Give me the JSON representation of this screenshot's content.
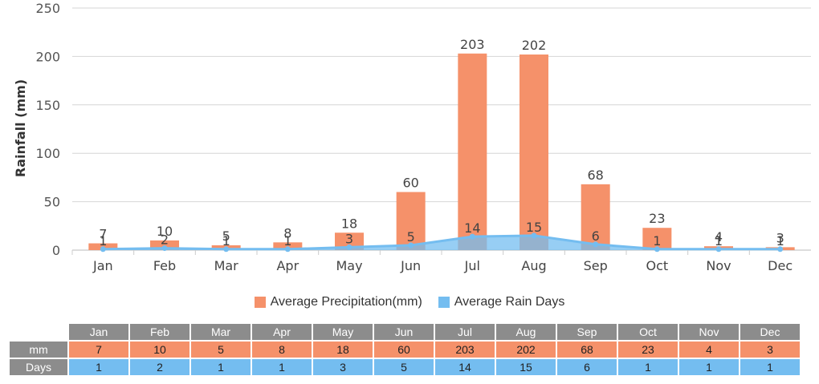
{
  "colors": {
    "precip": "#f5916a",
    "days": "#74bdf0"
  },
  "chart_data": {
    "type": "bar",
    "categories": [
      "Jan",
      "Feb",
      "Mar",
      "Apr",
      "May",
      "Jun",
      "Jul",
      "Aug",
      "Sep",
      "Oct",
      "Nov",
      "Dec"
    ],
    "series": [
      {
        "name": "Average Precipitation(mm)",
        "type": "bar",
        "values": [
          7,
          10,
          5,
          8,
          18,
          60,
          203,
          202,
          68,
          23,
          4,
          3
        ]
      },
      {
        "name": "Average Rain Days",
        "type": "area",
        "values": [
          1,
          2,
          1,
          1,
          3,
          5,
          14,
          15,
          6,
          1,
          1,
          1
        ]
      }
    ],
    "ylabel": "Rainfall (mm)",
    "ylim": [
      0,
      250
    ],
    "yticks": [
      0,
      50,
      100,
      150,
      200,
      250
    ],
    "grid": true,
    "legend_position": "bottom"
  },
  "legend": {
    "precip": "Average Precipitation(mm)",
    "days": "Average Rain Days"
  },
  "table": {
    "months": [
      "Jan",
      "Feb",
      "Mar",
      "Apr",
      "May",
      "Jun",
      "Jul",
      "Aug",
      "Sep",
      "Oct",
      "Nov",
      "Dec"
    ],
    "mm_label": "mm",
    "mm": [
      "7",
      "10",
      "5",
      "8",
      "18",
      "60",
      "203",
      "202",
      "68",
      "23",
      "4",
      "3"
    ],
    "days_label": "Days",
    "days": [
      "1",
      "2",
      "1",
      "1",
      "3",
      "5",
      "14",
      "15",
      "6",
      "1",
      "1",
      "1"
    ]
  }
}
